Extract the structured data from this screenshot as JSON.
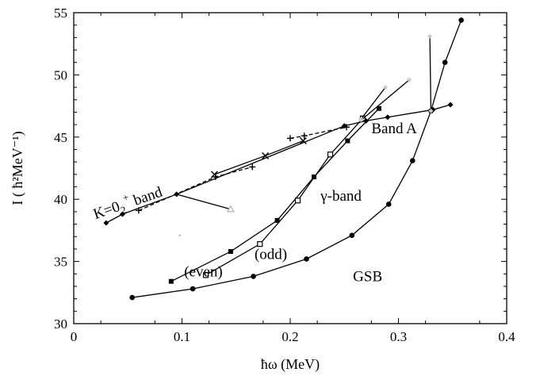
{
  "chart_data": {
    "type": "line",
    "xlabel": "ħω (MeV)",
    "ylabel": "I ( ħ²MeV⁻¹)",
    "xlim": [
      0,
      0.4
    ],
    "ylim": [
      30,
      55
    ],
    "xticks": [
      "0",
      "0.1",
      "0.2",
      "0.3",
      "0.4"
    ],
    "yticks": [
      "30",
      "35",
      "40",
      "45",
      "50",
      "55"
    ],
    "grid": false,
    "annotations": [
      {
        "text": "Band A",
        "x": 0.275,
        "y": 45.3
      },
      {
        "text": "γ-band",
        "x": 0.228,
        "y": 39.9
      },
      {
        "text": "GSB",
        "x": 0.258,
        "y": 33.4
      },
      {
        "text": "(even)",
        "x": 0.102,
        "y": 33.8
      },
      {
        "text": "(odd)",
        "x": 0.167,
        "y": 35.2
      }
    ],
    "k_band_label": {
      "prefix": "K=0",
      "sub": "2",
      "sup": "+",
      "suffix": " band",
      "x": 0.02,
      "y": 38.4
    },
    "series": [
      {
        "marker": "circle",
        "color": "#000000",
        "style": "solid",
        "x": [
          0.054,
          0.11,
          0.166,
          0.215,
          0.257,
          0.291,
          0.313,
          0.33,
          0.343,
          0.358
        ],
        "y": [
          32.1,
          32.8,
          33.8,
          35.2,
          37.1,
          39.6,
          43.1,
          47.1,
          51.0,
          54.4
        ]
      },
      {
        "marker": "square",
        "color": "#000000",
        "style": "solid",
        "x": [
          0.09,
          0.145,
          0.188,
          0.222,
          0.253,
          0.282
        ],
        "y": [
          33.4,
          35.8,
          38.3,
          41.8,
          44.7,
          47.3
        ]
      },
      {
        "marker": "square-open",
        "color": "#000000",
        "style": "solid",
        "x": [
          0.122,
          0.172,
          0.207,
          0.237,
          0.267
        ],
        "y": [
          33.9,
          36.4,
          39.9,
          43.6,
          46.5
        ]
      },
      {
        "marker": "diamond",
        "color": "#000000",
        "style": "solid",
        "x": [
          0.03,
          0.045,
          0.095,
          0.25,
          0.27,
          0.29,
          0.332,
          0.348
        ],
        "y": [
          38.1,
          38.8,
          40.4,
          45.9,
          46.3,
          46.6,
          47.2,
          47.6
        ]
      },
      {
        "marker": "x",
        "color": "#000000",
        "style": "solid",
        "x": [
          0.13,
          0.177,
          0.212
        ],
        "y": [
          42.0,
          43.5,
          44.7
        ]
      },
      {
        "marker": "none",
        "color": "#000000",
        "style": "solid",
        "x": [
          0.095,
          0.145
        ],
        "y": [
          40.4,
          39.2
        ]
      },
      {
        "marker": "triangle-open",
        "color": "#b0b0b0",
        "style": "none",
        "x": [
          0.145
        ],
        "y": [
          39.2
        ]
      },
      {
        "marker": "plus",
        "color": "#000000",
        "style": "dashed",
        "x": [
          0.06,
          0.131,
          0.165
        ],
        "y": [
          39.1,
          41.8,
          42.6
        ]
      },
      {
        "marker": "plus",
        "color": "#000000",
        "style": "dashed",
        "x": [
          0.2,
          0.213,
          0.252
        ],
        "y": [
          44.9,
          45.1,
          45.8
        ]
      },
      {
        "marker": "diamond-gray",
        "color": "#000000",
        "style": "solid",
        "x": [
          0.265,
          0.288
        ],
        "y": [
          46.4,
          49.0
        ]
      },
      {
        "marker": "diamond-gray",
        "color": "#000000",
        "style": "solid",
        "x": [
          0.266,
          0.31
        ],
        "y": [
          46.4,
          49.6
        ]
      },
      {
        "marker": "diamond-gray",
        "color": "#000000",
        "style": "solid",
        "x": [
          0.33,
          0.329
        ],
        "y": [
          47.1,
          53.1
        ]
      },
      {
        "marker": "dot",
        "color": "#808080",
        "style": "none",
        "x": [
          0.098
        ],
        "y": [
          37.1
        ]
      }
    ]
  }
}
